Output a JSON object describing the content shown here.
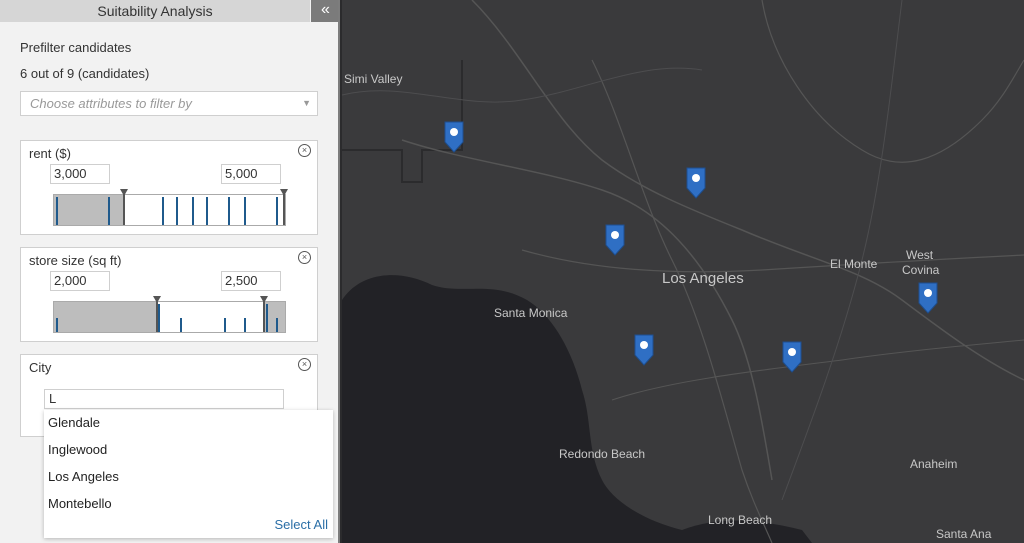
{
  "panel": {
    "title": "Suitability Analysis",
    "collapse_glyph": "«",
    "prefilter_label": "Prefilter candidates",
    "count_text": "6 out of 9 (candidates)",
    "attr_placeholder": "Choose attributes to filter by",
    "attr_chevron": "▼"
  },
  "filters": {
    "rent": {
      "label": "rent ($)",
      "min": "3,000",
      "max": "5,000",
      "close": "×"
    },
    "store_size": {
      "label": "store size (sq ft)",
      "min": "2,000",
      "max": "2,500",
      "close": "×"
    },
    "city": {
      "label": "City",
      "input_value": "L",
      "close": "×"
    }
  },
  "city_options": [
    "Glendale",
    "Inglewood",
    "Los Angeles",
    "Montebello"
  ],
  "select_all": "Select All",
  "map": {
    "labels": [
      "Simi Valley",
      "Santa Monica",
      "Los Angeles",
      "El Monte",
      "West",
      "Covina",
      "Redondo Beach",
      "Anaheim",
      "Long Beach",
      "Santa Ana"
    ],
    "marker_count": 6,
    "marker_color": "#2f6fc4",
    "background": "#2b2b2d"
  },
  "colors": {
    "accent": "#2a6ea6",
    "panel_bg": "#f2f2f2",
    "histogram_bar": "#1f5a8c"
  }
}
